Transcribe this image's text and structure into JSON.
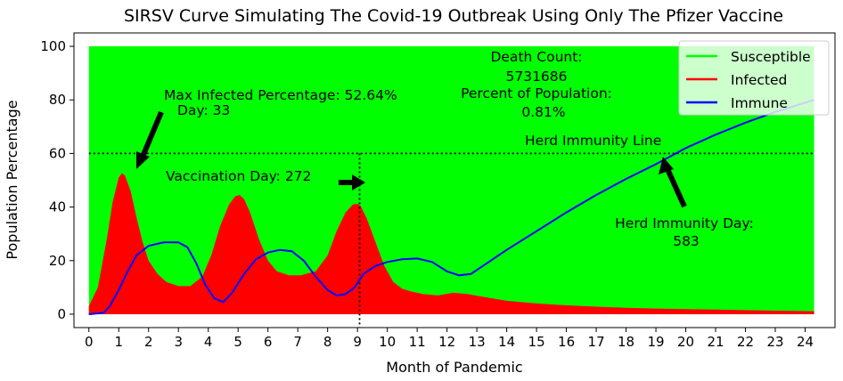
{
  "chart_data": {
    "type": "area",
    "title": "SIRSV Curve Simulating The Covid-19 Outbreak Using Only The Pfizer Vaccine",
    "xlabel": "Month of Pandemic",
    "ylabel": "Population Percentage",
    "xlim": [
      -0.5,
      25
    ],
    "ylim": [
      -5,
      105
    ],
    "xticks": [
      "0",
      "1",
      "2",
      "3",
      "4",
      "5",
      "6",
      "7",
      "8",
      "9",
      "10",
      "11",
      "12",
      "13",
      "14",
      "15",
      "16",
      "17",
      "18",
      "19",
      "20",
      "21",
      "22",
      "23",
      "24"
    ],
    "yticks": [
      "0",
      "20",
      "40",
      "60",
      "80",
      "100"
    ],
    "grid": false,
    "legend_position": "top-right",
    "series": [
      {
        "name": "Susceptible",
        "color": "#00ff00",
        "fill": true,
        "x": [
          0,
          24.3
        ],
        "values": [
          100,
          100
        ]
      },
      {
        "name": "Infected",
        "color": "#ff0000",
        "fill": true,
        "x": [
          0,
          0.3,
          0.6,
          0.8,
          1.0,
          1.1,
          1.2,
          1.4,
          1.6,
          1.8,
          2.0,
          2.3,
          2.6,
          3.0,
          3.4,
          3.8,
          4.1,
          4.4,
          4.7,
          4.9,
          5.05,
          5.2,
          5.4,
          5.7,
          6.0,
          6.3,
          6.7,
          7.1,
          7.6,
          8.0,
          8.3,
          8.6,
          8.85,
          9.0,
          9.1,
          9.3,
          9.6,
          9.9,
          10.2,
          10.5,
          10.8,
          11.2,
          11.7,
          12.2,
          12.7,
          13.2,
          14,
          15,
          16,
          17,
          18,
          19,
          20,
          21,
          22,
          23,
          24.3
        ],
        "values": [
          3,
          10,
          28,
          42,
          51,
          52.6,
          52,
          46,
          36,
          27,
          20,
          15,
          12,
          10.5,
          10.5,
          14,
          22,
          33,
          41,
          44,
          44.5,
          43,
          38,
          28,
          20,
          16,
          14.5,
          14.5,
          16,
          22,
          31,
          38,
          41,
          41.2,
          40.5,
          36,
          27,
          18,
          12,
          9.5,
          8.5,
          7.5,
          7,
          8,
          7.5,
          6.5,
          5,
          4,
          3.3,
          2.8,
          2.4,
          2.1,
          1.9,
          1.7,
          1.5,
          1.3,
          1.1
        ]
      },
      {
        "name": "Immune",
        "color": "#0000ff",
        "fill": false,
        "x": [
          0,
          0.5,
          0.7,
          1.0,
          1.3,
          1.6,
          2.0,
          2.5,
          3.0,
          3.3,
          3.6,
          3.9,
          4.2,
          4.5,
          4.8,
          5.2,
          5.6,
          6.0,
          6.4,
          6.8,
          7.2,
          7.6,
          8.0,
          8.3,
          8.6,
          8.9,
          9.2,
          9.6,
          10.0,
          10.5,
          11.0,
          11.5,
          12.0,
          12.4,
          12.8,
          13.2,
          14,
          15,
          16,
          17,
          18,
          19,
          19.5,
          20,
          21,
          22,
          23,
          24.3
        ],
        "values": [
          0,
          0.5,
          3,
          9,
          16,
          22,
          25.5,
          26.8,
          26.8,
          25,
          19,
          11,
          6,
          4.5,
          8,
          15,
          20.5,
          23,
          24,
          23.5,
          20,
          14,
          9,
          7,
          7.5,
          10,
          15,
          18,
          19.5,
          20.5,
          20.8,
          19.5,
          16,
          14.5,
          15,
          18,
          24,
          31,
          38,
          44.5,
          50.5,
          56,
          59,
          62,
          67,
          71.5,
          75.5,
          80
        ]
      }
    ],
    "reference_lines": {
      "herd_immunity_y": 60,
      "vaccination_x": 9.07
    },
    "annotations": {
      "max_infected": [
        "Max Infected Percentage: 52.64%",
        "Day: 33"
      ],
      "vaccination": "Vaccination Day: 272",
      "death": [
        "Death Count:",
        "5731686",
        "Percent of Population:",
        "0.81%"
      ],
      "herd_line": "Herd Immunity Line",
      "herd_day": [
        "Herd Immunity Day:",
        "583"
      ]
    }
  }
}
